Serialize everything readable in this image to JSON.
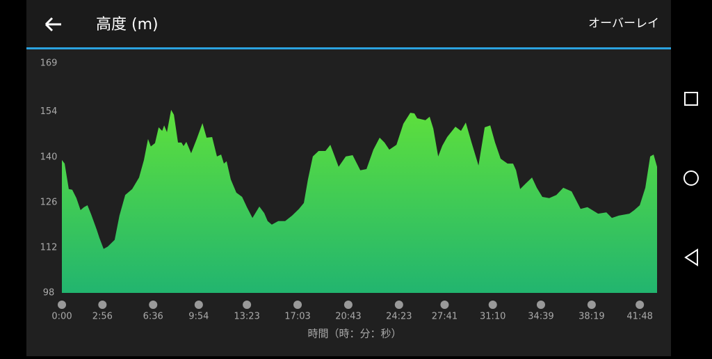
{
  "header": {
    "title": "高度 (m)",
    "action": "オーバーレイ"
  },
  "chart_data": {
    "type": "area",
    "x_label": "時間（時：分：秒）",
    "x": [
      0,
      12,
      30,
      45,
      63,
      81,
      96,
      111,
      127,
      151,
      163,
      181,
      199,
      229,
      250,
      275,
      305,
      335,
      356,
      374,
      386,
      404,
      420,
      435,
      444,
      456,
      474,
      486,
      504,
      519,
      528,
      540,
      561,
      585,
      610,
      628,
      652,
      673,
      691,
      703,
      715,
      733,
      757,
      782,
      803,
      827,
      857,
      878,
      893,
      911,
      939,
      969,
      999,
      1029,
      1050,
      1068,
      1089,
      1114,
      1144,
      1165,
      1201,
      1232,
      1262,
      1295,
      1322,
      1352,
      1379,
      1400,
      1421,
      1452,
      1482,
      1512,
      1530,
      1542,
      1578,
      1596,
      1612,
      1633,
      1651,
      1672,
      1708,
      1732,
      1753,
      1778,
      1808,
      1835,
      1859,
      1880,
      1904,
      1934,
      1958,
      1971,
      1989,
      2010,
      2040,
      2061,
      2085,
      2115,
      2146,
      2176,
      2212,
      2251,
      2281,
      2327,
      2363,
      2387,
      2417,
      2463,
      2484,
      2508,
      2532,
      2553,
      2568,
      2583
    ],
    "values": [
      139.1,
      138,
      130.1,
      129.9,
      127.3,
      123.6,
      124.5,
      125.1,
      122.3,
      117.6,
      115,
      111.6,
      112.3,
      114.4,
      121.9,
      128.3,
      130.1,
      133.7,
      139.1,
      145.6,
      143.3,
      144.3,
      149.2,
      148.1,
      149.8,
      147.7,
      154.6,
      153.1,
      144.5,
      144.5,
      143.4,
      144.7,
      141.2,
      145.6,
      150.5,
      146,
      146.2,
      140.2,
      140.8,
      138,
      138.7,
      133.1,
      129,
      127.7,
      124.5,
      121.2,
      124.7,
      122.7,
      120.2,
      119.1,
      120.2,
      120.2,
      121.9,
      124,
      125.8,
      133.1,
      140.2,
      141.9,
      141.9,
      143.8,
      137,
      140.2,
      140.6,
      135.9,
      136.3,
      142.3,
      146,
      144.5,
      142.3,
      143.8,
      150.3,
      153.7,
      153.5,
      152,
      151.4,
      152.5,
      148.8,
      140.2,
      143.5,
      146.2,
      149.4,
      148.1,
      150.7,
      144.5,
      137.4,
      149.2,
      149.8,
      144.5,
      139.5,
      138,
      138,
      135.9,
      130.1,
      131.6,
      133.7,
      130.5,
      127.7,
      127.3,
      128.3,
      130.5,
      129.4,
      124,
      124.5,
      122.5,
      122.9,
      121.2,
      121.9,
      122.5,
      123.6,
      125.1,
      130.5,
      140.2,
      140.8,
      137
    ],
    "color": "#5ee03c",
    "color_bottom": "#22b56f",
    "xlim": [
      0,
      2583
    ],
    "ylim": [
      98,
      169
    ],
    "xticks": [
      {
        "value": 0,
        "label": "0:00"
      },
      {
        "value": 176,
        "label": "2:56"
      },
      {
        "value": 396,
        "label": "6:36"
      },
      {
        "value": 594,
        "label": "9:54"
      },
      {
        "value": 803,
        "label": "13:23"
      },
      {
        "value": 1023,
        "label": "17:03"
      },
      {
        "value": 1243,
        "label": "20:43"
      },
      {
        "value": 1463,
        "label": "24:23"
      },
      {
        "value": 1661,
        "label": "27:41"
      },
      {
        "value": 1870,
        "label": "31:10"
      },
      {
        "value": 2079,
        "label": "34:39"
      },
      {
        "value": 2299,
        "label": "38:19"
      },
      {
        "value": 2508,
        "label": "41:48"
      }
    ],
    "yticks": [
      98,
      112,
      126,
      140,
      154,
      169
    ],
    "grid": false
  }
}
